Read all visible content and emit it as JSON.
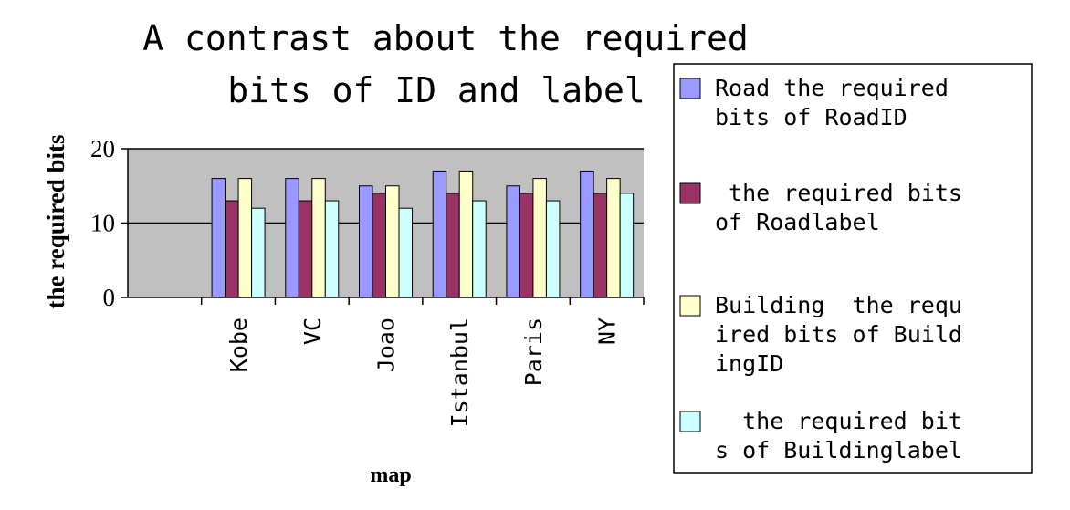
{
  "chart_data": {
    "type": "bar",
    "title_lines": [
      "A contrast about the required",
      "bits of ID and label"
    ],
    "xlabel": "map",
    "ylabel": "the required bits",
    "ylim": [
      0,
      20
    ],
    "yticks": [
      0,
      10,
      20
    ],
    "grid": "y-major",
    "legend_position": "right",
    "categories": [
      "",
      "Kobe",
      "VC",
      "Joao",
      "Istanbul",
      "Paris",
      "NY"
    ],
    "series": [
      {
        "name": "Road the required bits of RoadID",
        "name_lines": [
          "Road the required",
          "bits of RoadID"
        ],
        "color": "#9999ff",
        "values": [
          null,
          16,
          16,
          15,
          17,
          15,
          17
        ]
      },
      {
        "name": " the required bits of Roadlabel",
        "name_lines": [
          " the required bits",
          "of Roadlabel"
        ],
        "color": "#993366",
        "values": [
          null,
          13,
          13,
          14,
          14,
          14,
          14
        ]
      },
      {
        "name": "Building  the required bits of BuildingID",
        "name_lines": [
          "Building  the requ",
          "ired bits of Build",
          "ingID"
        ],
        "color": "#ffffcc",
        "values": [
          null,
          16,
          16,
          15,
          17,
          16,
          16
        ]
      },
      {
        "name": "  the required bits of Buildinglabel",
        "name_lines": [
          "  the required bit",
          "s of Buildinglabel"
        ],
        "color": "#ccffff",
        "values": [
          null,
          12,
          13,
          12,
          13,
          13,
          14
        ]
      }
    ],
    "plot_background": "#c0c0c0"
  }
}
